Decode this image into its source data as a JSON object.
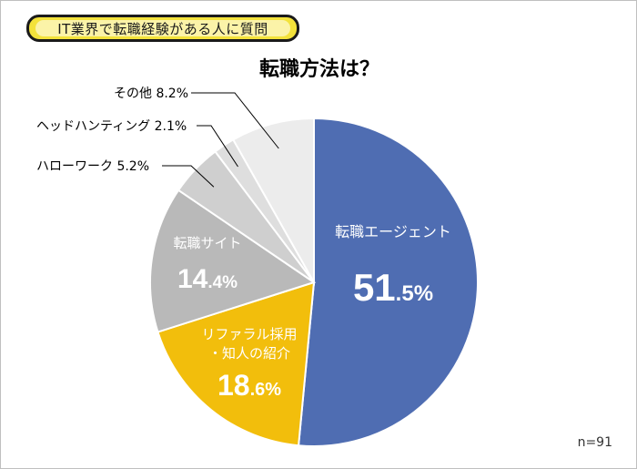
{
  "header": {
    "badge_text": "IT業界で転職経験がある人に質問"
  },
  "footer": {
    "sample_size": "n=91"
  },
  "chart_data": {
    "type": "pie",
    "title": "転職方法は？",
    "slices": [
      {
        "label": "転職エージェント",
        "value": 51.5,
        "int": "51",
        "dec": ".5%",
        "color": "#4f6db2",
        "text_color": "#ffffff"
      },
      {
        "label": "リファラル採用\n・知人の紹介",
        "value": 18.6,
        "int": "18",
        "dec": ".6%",
        "color": "#f2be0c",
        "text_color": "#ffffff"
      },
      {
        "label": "転職サイト",
        "value": 14.4,
        "int": "14",
        "dec": ".4%",
        "color": "#b9b9b9",
        "text_color": "#ffffff"
      },
      {
        "label": "ハローワーク 5.2%",
        "value": 5.2,
        "color": "#cfcfcf",
        "text_color": "#000000"
      },
      {
        "label": "ヘッドハンティング 2.1%",
        "value": 2.1,
        "color": "#dedede",
        "text_color": "#000000"
      },
      {
        "label": "その他 8.2%",
        "value": 8.2,
        "color": "#ececec",
        "text_color": "#000000"
      }
    ],
    "legend": "none"
  }
}
